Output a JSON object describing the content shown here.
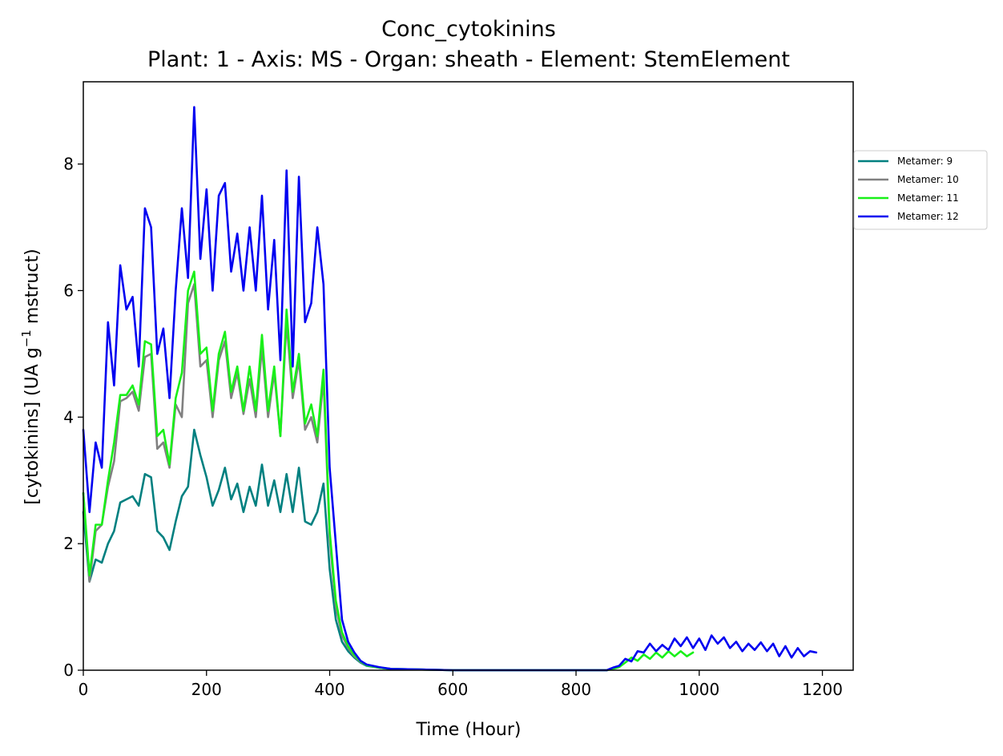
{
  "chart_data": {
    "type": "line",
    "title": "Conc_cytokinins",
    "subtitle": "Plant: 1 - Axis: MS - Organ: sheath - Element: StemElement",
    "xlabel": "Time (Hour)",
    "ylabel_main": "[cytokinins] (UA g",
    "ylabel_sup": "−1",
    "ylabel_tail": " mstruct)",
    "xlim": [
      0,
      1250
    ],
    "ylim": [
      0,
      9.3
    ],
    "xticks": [
      0,
      200,
      400,
      600,
      800,
      1000,
      1200
    ],
    "yticks": [
      0,
      2,
      4,
      6,
      8
    ],
    "xtick_labels": [
      "0",
      "200",
      "400",
      "600",
      "800",
      "1000",
      "1200"
    ],
    "ytick_labels": [
      "0",
      "2",
      "4",
      "6",
      "8"
    ],
    "grid": false,
    "legend_position": "outside-right",
    "series": [
      {
        "name": "Metamer: 9",
        "color": "#008080",
        "x": [
          0,
          10,
          20,
          30,
          40,
          50,
          60,
          70,
          80,
          90,
          100,
          110,
          120,
          130,
          140,
          150,
          160,
          170,
          180,
          190,
          200,
          210,
          220,
          230,
          240,
          250,
          260,
          270,
          280,
          290,
          300,
          310,
          320,
          330,
          340,
          350,
          360,
          370,
          380,
          390,
          400,
          410,
          420,
          430,
          440,
          450,
          460,
          480,
          500,
          550,
          600,
          700,
          800,
          850
        ],
        "y": [
          2.5,
          1.4,
          1.75,
          1.7,
          2.0,
          2.2,
          2.65,
          2.7,
          2.75,
          2.6,
          3.1,
          3.05,
          2.2,
          2.1,
          1.9,
          2.35,
          2.75,
          2.9,
          3.8,
          3.4,
          3.05,
          2.6,
          2.85,
          3.2,
          2.7,
          2.95,
          2.5,
          2.9,
          2.6,
          3.25,
          2.6,
          3.0,
          2.5,
          3.1,
          2.5,
          3.2,
          2.35,
          2.3,
          2.5,
          2.95,
          1.6,
          0.8,
          0.45,
          0.3,
          0.2,
          0.12,
          0.07,
          0.04,
          0.02,
          0.01,
          0.0,
          0.0,
          0.0,
          0.0
        ]
      },
      {
        "name": "Metamer: 10",
        "color": "#808080",
        "x": [
          0,
          10,
          20,
          30,
          40,
          50,
          60,
          70,
          80,
          90,
          100,
          110,
          120,
          130,
          140,
          150,
          160,
          170,
          180,
          190,
          200,
          210,
          220,
          230,
          240,
          250,
          260,
          270,
          280,
          290,
          300,
          310,
          320,
          330,
          340,
          350,
          360,
          370,
          380,
          390,
          400,
          410,
          420,
          430,
          440,
          450,
          460,
          480,
          500,
          550,
          600,
          700,
          800,
          850
        ],
        "y": [
          2.8,
          1.4,
          2.2,
          2.3,
          2.9,
          3.3,
          4.25,
          4.3,
          4.4,
          4.1,
          4.95,
          5.0,
          3.5,
          3.6,
          3.2,
          4.2,
          4.0,
          5.8,
          6.1,
          4.8,
          4.9,
          4.0,
          4.9,
          5.2,
          4.3,
          4.7,
          4.05,
          4.6,
          4.0,
          5.1,
          4.0,
          4.7,
          3.7,
          5.5,
          4.3,
          4.9,
          3.8,
          4.0,
          3.6,
          4.6,
          2.1,
          1.0,
          0.55,
          0.35,
          0.22,
          0.13,
          0.08,
          0.04,
          0.02,
          0.01,
          0.0,
          0.0,
          0.0,
          0.0
        ]
      },
      {
        "name": "Metamer: 11",
        "color": "#19f019",
        "x": [
          0,
          10,
          20,
          30,
          40,
          50,
          60,
          70,
          80,
          90,
          100,
          110,
          120,
          130,
          140,
          150,
          160,
          170,
          180,
          190,
          200,
          210,
          220,
          230,
          240,
          250,
          260,
          270,
          280,
          290,
          300,
          310,
          320,
          330,
          340,
          350,
          360,
          370,
          380,
          390,
          400,
          410,
          420,
          430,
          440,
          450,
          460,
          480,
          500,
          550,
          600,
          700,
          800,
          850,
          860,
          870,
          880,
          890,
          900,
          910,
          920,
          930,
          940,
          950,
          960,
          970,
          980,
          990
        ],
        "y": [
          2.8,
          1.5,
          2.3,
          2.3,
          3.0,
          3.6,
          4.35,
          4.35,
          4.5,
          4.2,
          5.2,
          5.15,
          3.7,
          3.8,
          3.25,
          4.3,
          4.7,
          6.0,
          6.3,
          5.0,
          5.1,
          4.1,
          5.0,
          5.35,
          4.4,
          4.8,
          4.1,
          4.8,
          4.1,
          5.3,
          4.1,
          4.8,
          3.7,
          5.7,
          4.4,
          5.0,
          3.9,
          4.2,
          3.7,
          4.75,
          2.2,
          1.1,
          0.6,
          0.38,
          0.24,
          0.14,
          0.08,
          0.04,
          0.02,
          0.01,
          0.0,
          0.0,
          0.0,
          0.0,
          0.02,
          0.05,
          0.12,
          0.2,
          0.15,
          0.25,
          0.18,
          0.28,
          0.2,
          0.3,
          0.22,
          0.3,
          0.22,
          0.28
        ]
      },
      {
        "name": "Metamer: 12",
        "color": "#0000f0",
        "x": [
          0,
          10,
          20,
          30,
          40,
          50,
          60,
          70,
          80,
          90,
          100,
          110,
          120,
          130,
          140,
          150,
          160,
          170,
          180,
          190,
          200,
          210,
          220,
          230,
          240,
          250,
          260,
          270,
          280,
          290,
          300,
          310,
          320,
          330,
          340,
          350,
          360,
          370,
          380,
          390,
          400,
          410,
          420,
          430,
          440,
          450,
          460,
          480,
          500,
          550,
          600,
          700,
          800,
          850,
          860,
          870,
          880,
          890,
          900,
          910,
          920,
          930,
          940,
          950,
          960,
          970,
          980,
          990,
          1000,
          1010,
          1020,
          1030,
          1040,
          1050,
          1060,
          1070,
          1080,
          1090,
          1100,
          1110,
          1120,
          1130,
          1140,
          1150,
          1160,
          1170,
          1180,
          1190
        ],
        "y": [
          3.8,
          2.5,
          3.6,
          3.2,
          5.5,
          4.5,
          6.4,
          5.7,
          5.9,
          4.8,
          7.3,
          7.0,
          5.0,
          5.4,
          4.3,
          6.0,
          7.3,
          6.2,
          8.9,
          6.5,
          7.6,
          6.0,
          7.5,
          7.7,
          6.3,
          6.9,
          6.0,
          7.0,
          6.0,
          7.5,
          5.7,
          6.8,
          4.9,
          7.9,
          4.8,
          7.8,
          5.5,
          5.8,
          7.0,
          6.1,
          3.2,
          2.0,
          0.8,
          0.45,
          0.28,
          0.15,
          0.09,
          0.05,
          0.02,
          0.01,
          0.0,
          0.0,
          0.0,
          0.0,
          0.04,
          0.07,
          0.18,
          0.14,
          0.3,
          0.28,
          0.42,
          0.3,
          0.4,
          0.32,
          0.5,
          0.38,
          0.52,
          0.35,
          0.5,
          0.32,
          0.55,
          0.42,
          0.52,
          0.35,
          0.45,
          0.3,
          0.42,
          0.32,
          0.44,
          0.3,
          0.42,
          0.22,
          0.38,
          0.2,
          0.35,
          0.22,
          0.3,
          0.28
        ]
      }
    ]
  }
}
